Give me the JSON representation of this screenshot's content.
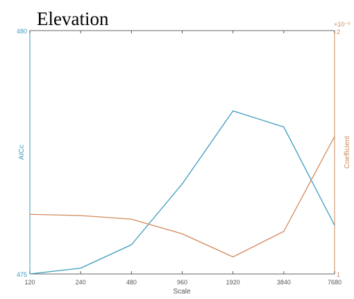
{
  "chart_data": {
    "type": "line",
    "title": "Elevation",
    "xlabel": "Scale",
    "categories": [
      "120",
      "240",
      "480",
      "960",
      "1920",
      "3840",
      "7680"
    ],
    "y_left": {
      "label": "AICc",
      "ylim": [
        475,
        480
      ],
      "tick_labels": [
        "480",
        "475"
      ],
      "color": "#3a9bbd"
    },
    "y_right": {
      "label": "Coefficient",
      "ylim": [
        1,
        2
      ],
      "tick_labels": [
        "2",
        "1"
      ],
      "exponent_label": "×10⁻³",
      "color": "#d2895a"
    },
    "series": [
      {
        "axis": "left",
        "color": "#3a9bbd",
        "values": [
          475.0,
          475.12,
          475.6,
          476.85,
          478.35,
          478.02,
          476.0
        ]
      },
      {
        "axis": "right",
        "color": "#d2895a",
        "values": [
          1.245,
          1.24,
          1.225,
          1.165,
          1.07,
          1.175,
          1.565
        ]
      }
    ],
    "grid": false,
    "legend": "none"
  }
}
